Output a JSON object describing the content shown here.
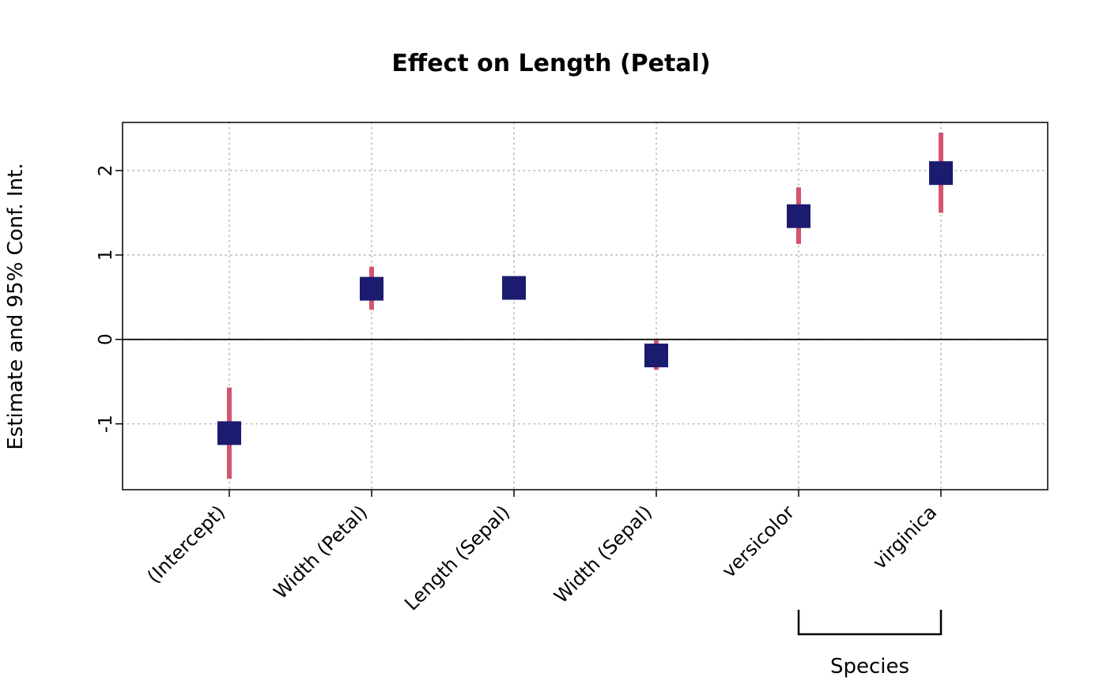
{
  "chart_data": {
    "type": "scatter",
    "title": "Effect on Length (Petal)",
    "ylabel": "Estimate and 95% Conf. Int.",
    "xlabel": "",
    "categories": [
      "(Intercept)",
      "Width (Petal)",
      "Length (Sepal)",
      "Width (Sepal)",
      "versicolor",
      "virginica"
    ],
    "series": [
      {
        "name": "Estimate",
        "values": [
          -1.11,
          0.6,
          0.61,
          -0.19,
          1.46,
          1.97
        ]
      },
      {
        "name": "CI lower (95%)",
        "values": [
          -1.65,
          0.35,
          0.48,
          -0.36,
          1.13,
          1.5
        ]
      },
      {
        "name": "CI upper (95%)",
        "values": [
          -0.57,
          0.86,
          0.73,
          -0.01,
          1.8,
          2.45
        ]
      }
    ],
    "yticks": [
      -1,
      0,
      1,
      2
    ],
    "ylim": [
      -1.78,
      2.57
    ],
    "grid": true,
    "zero_line": true,
    "legend_position": "none",
    "group_bracket": {
      "label": "Species",
      "from": 4,
      "to": 5
    },
    "colors": {
      "point": "#1b1b70",
      "ci": "#d4546e",
      "grid": "#bbbbbb",
      "axis": "#000000",
      "background": "#ffffff"
    }
  }
}
